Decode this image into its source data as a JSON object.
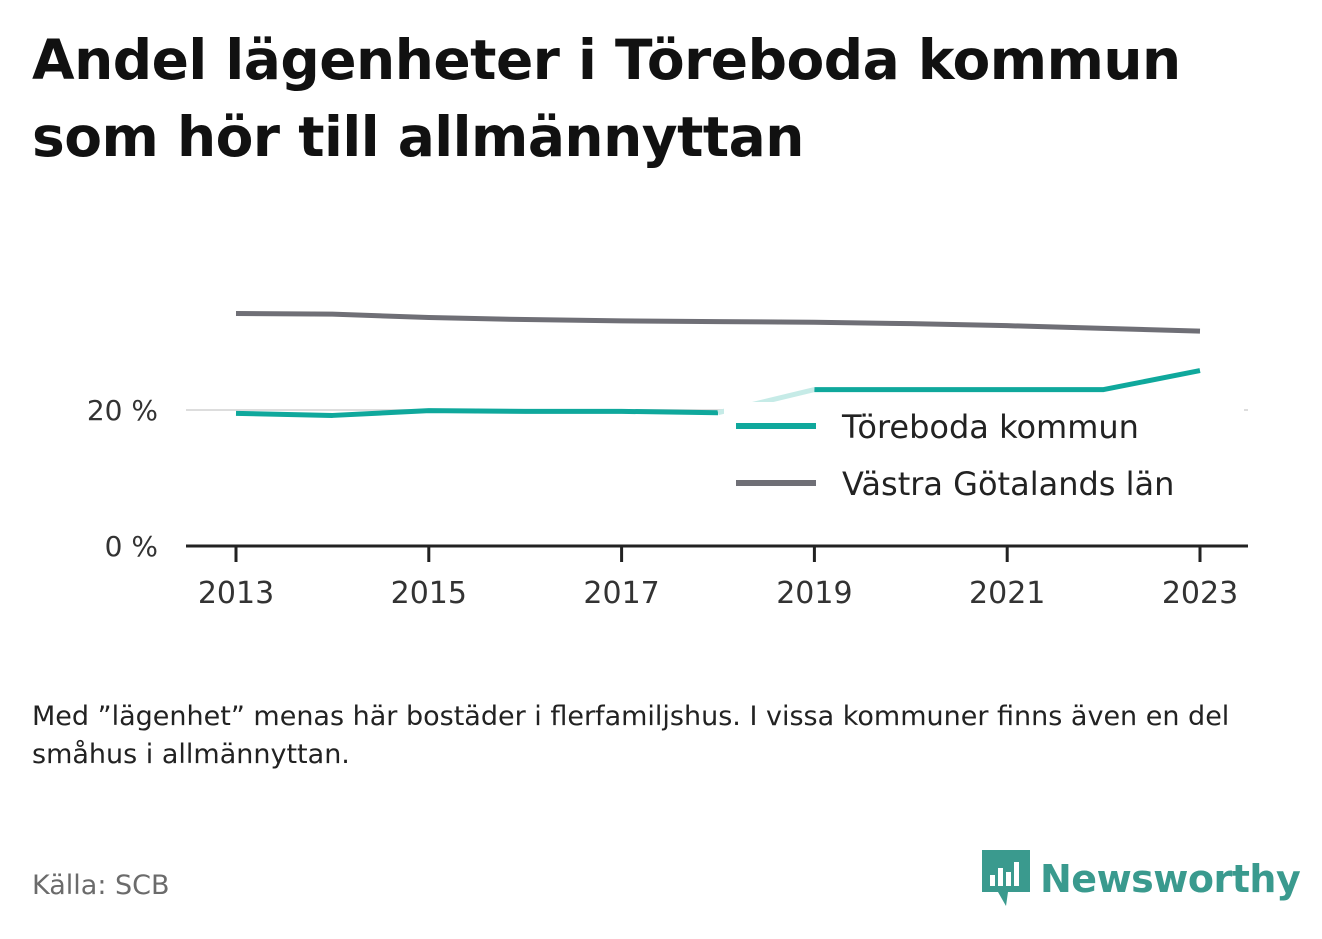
{
  "header": {
    "title": "Andel lägenheter i Töreboda kommun som hör till allmännyttan"
  },
  "footer": {
    "note": "Med ”lägenhet” menas här bostäder i flerfamiljshus. I vissa kommuner finns även en del småhus i allmännyttan.",
    "source": "Källa: SCB",
    "brand": "Newsworthy",
    "brand_icon": "bar-chart-speech-bubble-icon"
  },
  "colors": {
    "toreboda": "#0fa89c",
    "toreboda_faded": "#c6ebe7",
    "vastra_gotaland": "#6f6f76",
    "brand": "#3a9a8e",
    "axis": "#222222",
    "grid": "#dddddd"
  },
  "chart_data": {
    "type": "line",
    "x": [
      2013,
      2014,
      2015,
      2016,
      2017,
      2018,
      2019,
      2020,
      2021,
      2022,
      2023
    ],
    "x_ticks": [
      "2013",
      "2015",
      "2017",
      "2019",
      "2021",
      "2023"
    ],
    "y_ticks": [
      {
        "value": 0,
        "label": "0 %"
      },
      {
        "value": 20,
        "label": "20 %"
      }
    ],
    "ylim": [
      0,
      40
    ],
    "grid": true,
    "legend_position": "right",
    "series": [
      {
        "name": "Töreboda kommun",
        "color": "#0fa89c",
        "values": [
          19.5,
          19.2,
          19.9,
          19.8,
          19.8,
          19.6,
          23.0,
          23.0,
          23.0,
          23.0,
          25.8
        ],
        "faded_segment": [
          2018,
          2019
        ]
      },
      {
        "name": "Västra Götalands län",
        "color": "#6f6f76",
        "values": [
          34.2,
          34.1,
          33.6,
          33.3,
          33.1,
          33.0,
          32.9,
          32.7,
          32.4,
          32.0,
          31.6
        ]
      }
    ]
  }
}
